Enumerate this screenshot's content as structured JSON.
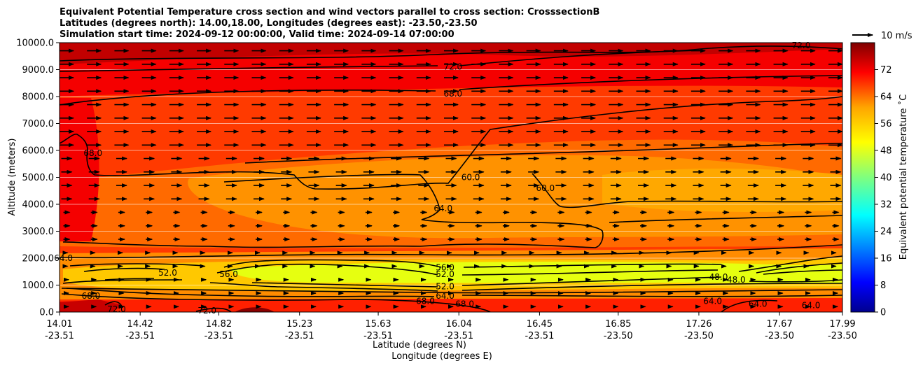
{
  "chart_data": {
    "type": "heatmap",
    "title_lines": [
      "Equivalent Potential Temperature cross section and wind vectors parallel to cross section: CrosssectionB",
      "Latitudes (degrees north): 14.00,18.00, Longitudes (degrees east): -23.50,-23.50",
      "Simulation start time: 2024-09-12 00:00:00, Valid time: 2024-09-14 07:00:00"
    ],
    "ylabel": "Altitude (meters)",
    "xlabel_lat": "Latitude (degrees N)",
    "xlabel_lon": "Longitude (degrees E)",
    "ylim": [
      0,
      10000
    ],
    "y_ticks": [
      "0.0",
      "1000.0",
      "2000.0",
      "3000.0",
      "4000.0",
      "5000.0",
      "6000.0",
      "7000.0",
      "8000.0",
      "9000.0",
      "10000.0"
    ],
    "x_ticks": [
      {
        "lat": "14.01",
        "lon": "-23.51"
      },
      {
        "lat": "14.42",
        "lon": "-23.51"
      },
      {
        "lat": "14.82",
        "lon": "-23.51"
      },
      {
        "lat": "15.23",
        "lon": "-23.51"
      },
      {
        "lat": "15.63",
        "lon": "-23.51"
      },
      {
        "lat": "16.04",
        "lon": "-23.51"
      },
      {
        "lat": "16.45",
        "lon": "-23.51"
      },
      {
        "lat": "16.85",
        "lon": "-23.50"
      },
      {
        "lat": "17.26",
        "lon": "-23.50"
      },
      {
        "lat": "17.67",
        "lon": "-23.50"
      },
      {
        "lat": "17.99",
        "lon": "-23.50"
      }
    ],
    "colorbar": {
      "label": "Equivalent potential temperature ˚C",
      "range": [
        0,
        80
      ],
      "ticks": [
        "0",
        "8",
        "16",
        "24",
        "32",
        "40",
        "48",
        "56",
        "64",
        "72"
      ]
    },
    "quiver_key": "10 m/s",
    "contour_labels": [
      {
        "text": "72.0",
        "x": 16.01,
        "alt": 9100
      },
      {
        "text": "68.0",
        "x": 16.01,
        "alt": 8100
      },
      {
        "text": "68.0",
        "x": 14.18,
        "alt": 5900
      },
      {
        "text": "60.0",
        "x": 16.1,
        "alt": 5000
      },
      {
        "text": "60.0",
        "x": 16.48,
        "alt": 4600
      },
      {
        "text": "64.0",
        "x": 15.96,
        "alt": 3850
      },
      {
        "text": "64.0",
        "x": 14.03,
        "alt": 2000
      },
      {
        "text": "52.0",
        "x": 14.56,
        "alt": 1450
      },
      {
        "text": "56.0",
        "x": 14.87,
        "alt": 1400
      },
      {
        "text": "56.0",
        "x": 15.97,
        "alt": 1650
      },
      {
        "text": "52.0",
        "x": 15.97,
        "alt": 1400
      },
      {
        "text": "52.0",
        "x": 15.97,
        "alt": 950
      },
      {
        "text": "64.0",
        "x": 15.97,
        "alt": 600
      },
      {
        "text": "68.0",
        "x": 14.17,
        "alt": 600
      },
      {
        "text": "72.0",
        "x": 14.3,
        "alt": 100
      },
      {
        "text": "72.0",
        "x": 14.76,
        "alt": 50
      },
      {
        "text": "68.0",
        "x": 15.87,
        "alt": 400
      },
      {
        "text": "68.0",
        "x": 16.07,
        "alt": 300
      },
      {
        "text": "48.0",
        "x": 17.36,
        "alt": 1300
      },
      {
        "text": "48.0",
        "x": 17.45,
        "alt": 1200
      },
      {
        "text": "64.0",
        "x": 17.33,
        "alt": 400
      },
      {
        "text": "64.0",
        "x": 17.56,
        "alt": 300
      },
      {
        "text": "64.0",
        "x": 17.83,
        "alt": 250
      },
      {
        "text": "72.0",
        "x": 17.78,
        "alt": 9900
      }
    ]
  }
}
